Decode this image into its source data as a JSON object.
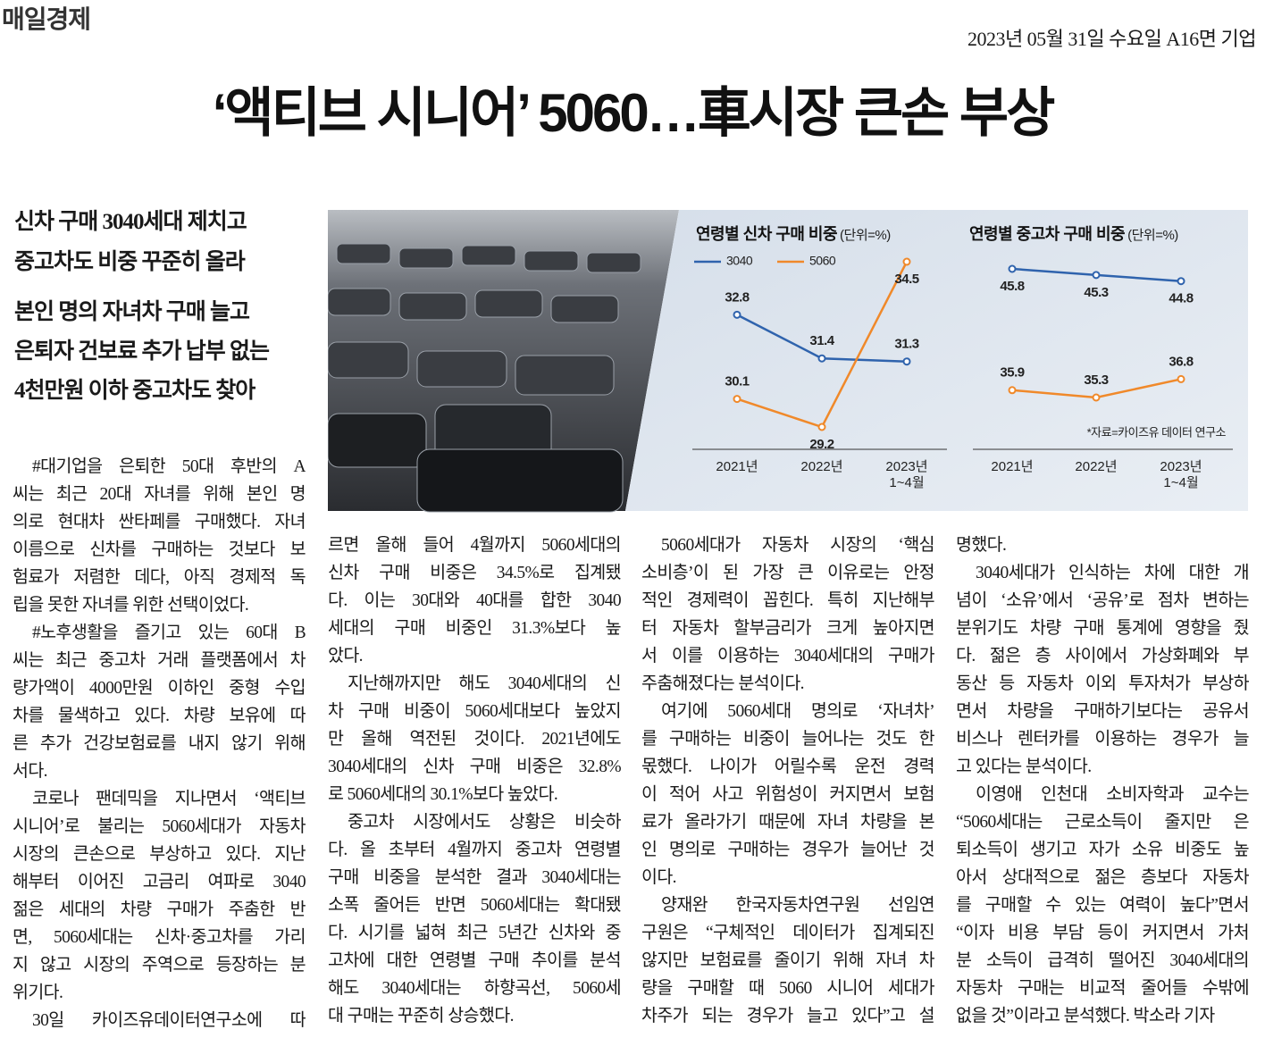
{
  "header": {
    "logo": "매일경제",
    "dateline": "2023년 05월 31일 수요일 A16면 기업"
  },
  "headline": "‘액티브 시니어’ 5060…車시장 큰손 부상",
  "subheads": [
    [
      "신차 구매 3040세대 제치고",
      "중고차도 비중 꾸준히 올라"
    ],
    [
      "본인 명의 자녀차 구매 늘고",
      "은퇴자 건보료 추가 납부 없는",
      "4천만원 이하 중고차도 찾아"
    ]
  ],
  "chart_data": [
    {
      "type": "line",
      "title": "연령별 신차 구매 비중",
      "unit_note": "(단위=%)",
      "categories": [
        "2021년",
        "2022년",
        "2023년\n1~4월"
      ],
      "series": [
        {
          "name": "3040",
          "color": "#2f63ad",
          "values": [
            32.8,
            31.4,
            31.3
          ]
        },
        {
          "name": "5060",
          "color": "#f0892a",
          "values": [
            30.1,
            29.2,
            34.5
          ]
        }
      ]
    },
    {
      "type": "line",
      "title": "연령별 중고차 구매 비중",
      "unit_note": "(단위=%)",
      "categories": [
        "2021년",
        "2022년",
        "2023년\n1~4월"
      ],
      "series": [
        {
          "color": "#2f63ad",
          "values": [
            45.8,
            45.3,
            44.8
          ]
        },
        {
          "color": "#f0892a",
          "values": [
            35.9,
            35.3,
            36.8
          ]
        }
      ],
      "note": "*자료=카이즈유 데이터 연구소"
    }
  ],
  "body": {
    "columns": [
      {
        "paragraphs": [
          [
            "#대기업을 은퇴한 50대 후반의 A",
            "씨는 최근 20대 자녀를 위해 본인 명",
            "의로 현대차 싼타페를 구매했다. 자녀",
            "이름으로 신차를 구매하는 것보다 보",
            "험료가 저렴한 데다, 아직 경제적 독",
            "립을 못한 자녀를 위한 선택이었다."
          ],
          [
            "#노후생활을 즐기고 있는 60대 B",
            "씨는 최근 중고차 거래 플랫폼에서 차",
            "량가액이 4000만원 이하인 중형 수입",
            "차를 물색하고 있다. 차량 보유에 따",
            "른 추가 건강보험료를 내지 않기 위해",
            "서다."
          ],
          [
            "코로나 팬데믹을 지나면서 ‘액티브",
            "시니어’로 불리는 5060세대가 자동차",
            "시장의 큰손으로 부상하고 있다. 지난",
            "해부터 이어진 고금리 여파로 3040",
            "젊은 세대의 차량 구매가 주춤한 반",
            "면, 5060세대는 신차·중고차를 가리",
            "지 않고 시장의 주역으로 등장하는 분",
            "위기다."
          ],
          [
            "30일 카이즈유데이터연구소에 따"
          ]
        ]
      },
      {
        "paragraphs": [
          [
            "르면 올해 들어 4월까지 5060세대의",
            "신차 구매 비중은 34.5%로 집계됐",
            "다. 이는 30대와 40대를 합한 3040",
            "세대의 구매 비중인 31.3%보다 높",
            "았다."
          ],
          [
            "지난해까지만 해도 3040세대의 신",
            "차 구매 비중이 5060세대보다 높았지",
            "만 올해 역전된 것이다. 2021년에도",
            "3040세대의 신차 구매 비중은 32.8%",
            "로 5060세대의 30.1%보다 높았다."
          ],
          [
            "중고차 시장에서도 상황은 비슷하",
            "다. 올 초부터 4월까지 중고차 연령별",
            "구매 비중을 분석한 결과 3040세대는",
            "소폭 줄어든 반면 5060세대는 확대됐",
            "다. 시기를 넓혀 최근 5년간 신차와 중",
            "고차에 대한 연령별 구매 추이를 분석",
            "해도 3040세대는 하향곡선, 5060세",
            "대 구매는 꾸준히 상승했다."
          ]
        ]
      },
      {
        "paragraphs": [
          [
            "5060세대가 자동차 시장의 ‘핵심",
            "소비층’이 된 가장 큰 이유로는 안정",
            "적인 경제력이 꼽힌다. 특히 지난해부",
            "터 자동차 할부금리가 크게 높아지면",
            "서 이를 이용하는 3040세대의 구매가",
            "주춤해졌다는 분석이다."
          ],
          [
            "여기에 5060세대 명의로 ‘자녀차’",
            "를 구매하는 비중이 늘어나는 것도 한",
            "몫했다. 나이가 어릴수록 운전 경력",
            "이 적어 사고 위험성이 커지면서 보험",
            "료가 올라가기 때문에 자녀 차량을 본",
            "인 명의로 구매하는 경우가 늘어난 것",
            "이다."
          ],
          [
            "양재완 한국자동차연구원 선임연",
            "구원은 “구체적인 데이터가 집계되진",
            "않지만 보험료를 줄이기 위해 자녀 차",
            "량을 구매할 때 5060 시니어 세대가",
            "차주가 되는 경우가 늘고 있다”고 설"
          ]
        ]
      },
      {
        "paragraphs": [
          [
            "명했다."
          ],
          [
            "3040세대가 인식하는 차에 대한 개",
            "념이 ‘소유’에서 ‘공유’로 점차 변하는",
            "분위기도 차량 구매 통계에 영향을 줬",
            "다. 젊은 층 사이에서 가상화폐와 부",
            "동산 등 자동차 이외 투자처가 부상하",
            "면서 차량을 구매하기보다는 공유서",
            "비스나 렌터카를 이용하는 경우가 늘",
            "고 있다는 분석이다."
          ],
          [
            "이영애 인천대 소비자학과 교수는",
            "“5060세대는 근로소득이 줄지만 은",
            "퇴소득이 생기고 자가 소유 비중도 높",
            "아서 상대적으로 젊은 층보다 자동차",
            "를 구매할 수 있는 여력이 높다”면서",
            "“이자 비용 부담 등이 커지면서 가처",
            "분 소득이 급격히 떨어진 3040세대의",
            "자동차 구매는 비교적 줄어들 수밖에",
            "없을 것”이라고 분석했다. 박소라 기자"
          ]
        ]
      }
    ]
  }
}
